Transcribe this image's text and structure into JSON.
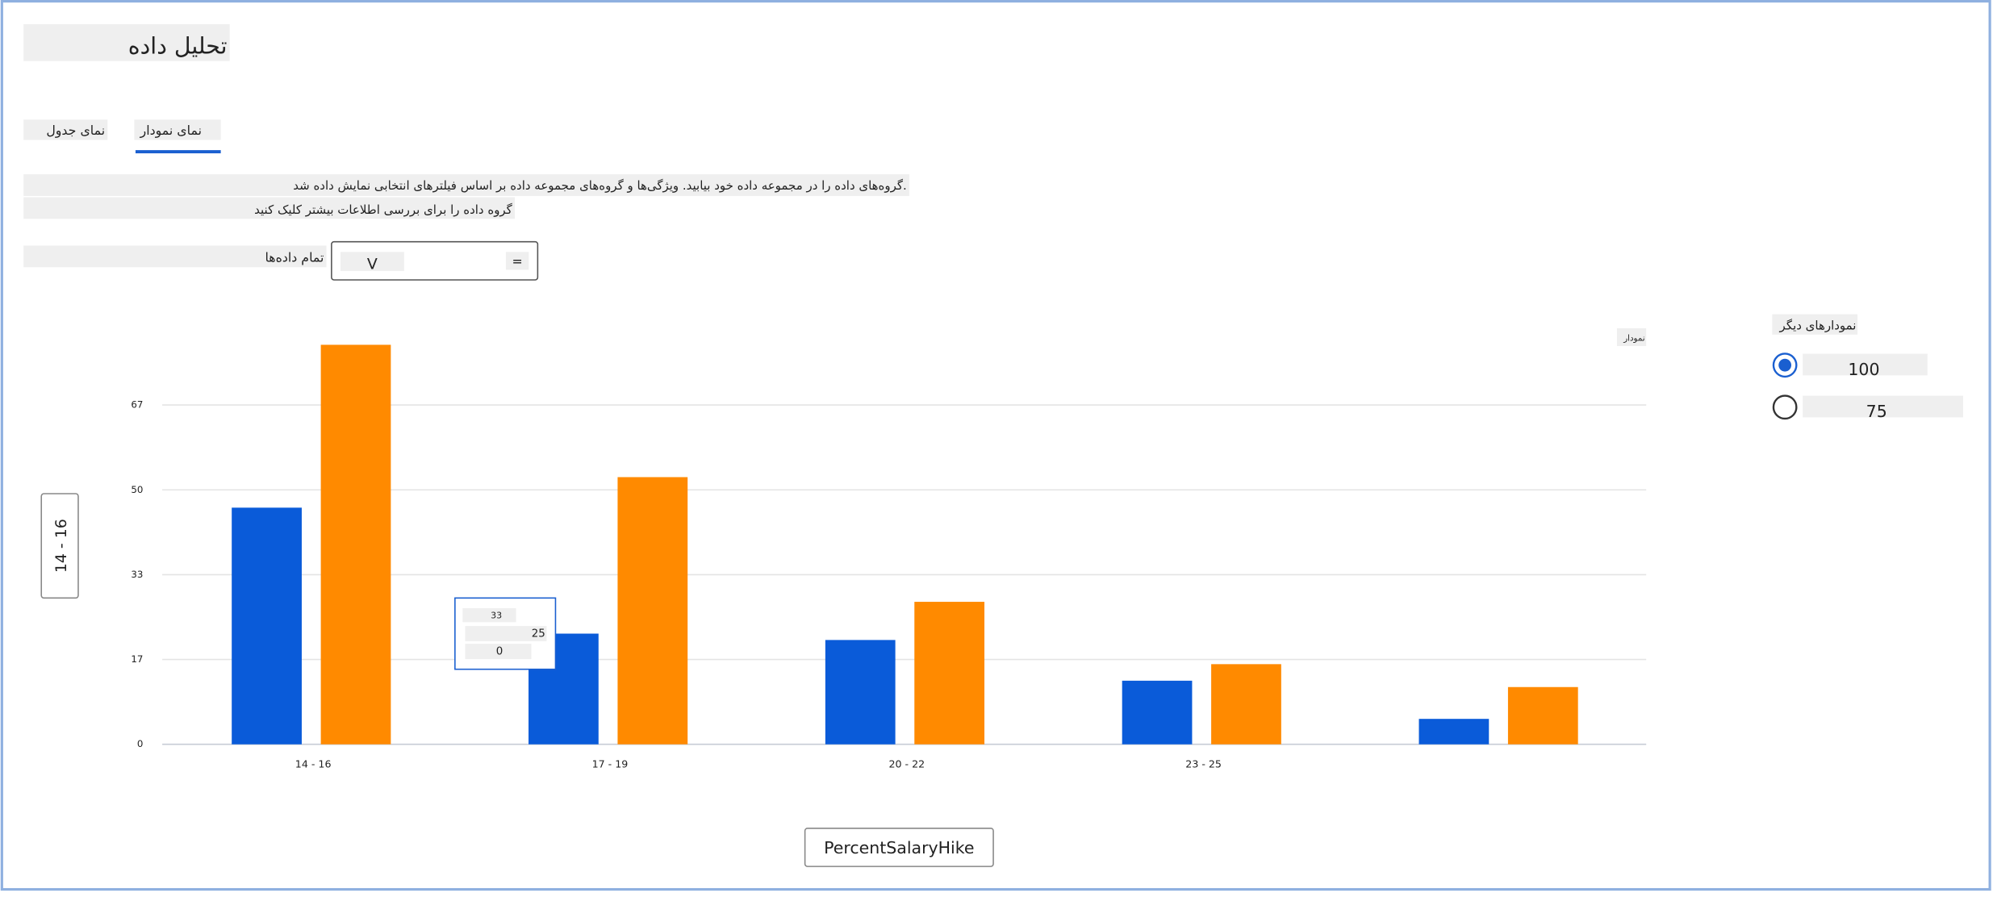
{
  "header": {
    "title": "تحلیل داده"
  },
  "tabs": [
    "نمای جدول",
    "نمای نمودار"
  ],
  "description": [
    "گروه‌های داده را در مجموعه داده خود بیابید. ویژگی‌ها و گروه‌های مجموعه داده بر اساس فیلترهای انتخابی نمایش داده شد.",
    "گروه داده را برای بررسی اطلاعات بیشتر کلیک کنید"
  ],
  "filter": {
    "label": "تمام داده‌ها",
    "value": "V",
    "operator": "="
  },
  "slicer": "14 - 16",
  "options": {
    "title": "نمودارهای دیگر",
    "choices": [
      "100",
      "75"
    ]
  },
  "tooltip": {
    "title": 33,
    "rows": [
      25,
      0
    ]
  },
  "chart_data": {
    "type": "bar",
    "legend": "نمودار",
    "x_label": "PercentSalaryHike",
    "categories": [
      "14 - 16",
      "17 - 19",
      "20 - 22",
      "23 - 25",
      null
    ],
    "series": [
      {
        "color": "#0a5bd9",
        "values": [
          46.5,
          21.75,
          20.5,
          12.5,
          5
        ]
      },
      {
        "color": "#ff8a00",
        "values": [
          78.5,
          52.5,
          28,
          15.75,
          11.25
        ]
      }
    ],
    "ylim": [
      0,
      80
    ],
    "yticks": [
      0,
      {
        "value": 16.67,
        "label": "17"
      },
      {
        "value": 33.33,
        "label": "33"
      },
      50,
      {
        "value": 66.67,
        "label": "67"
      }
    ],
    "grid": true
  }
}
